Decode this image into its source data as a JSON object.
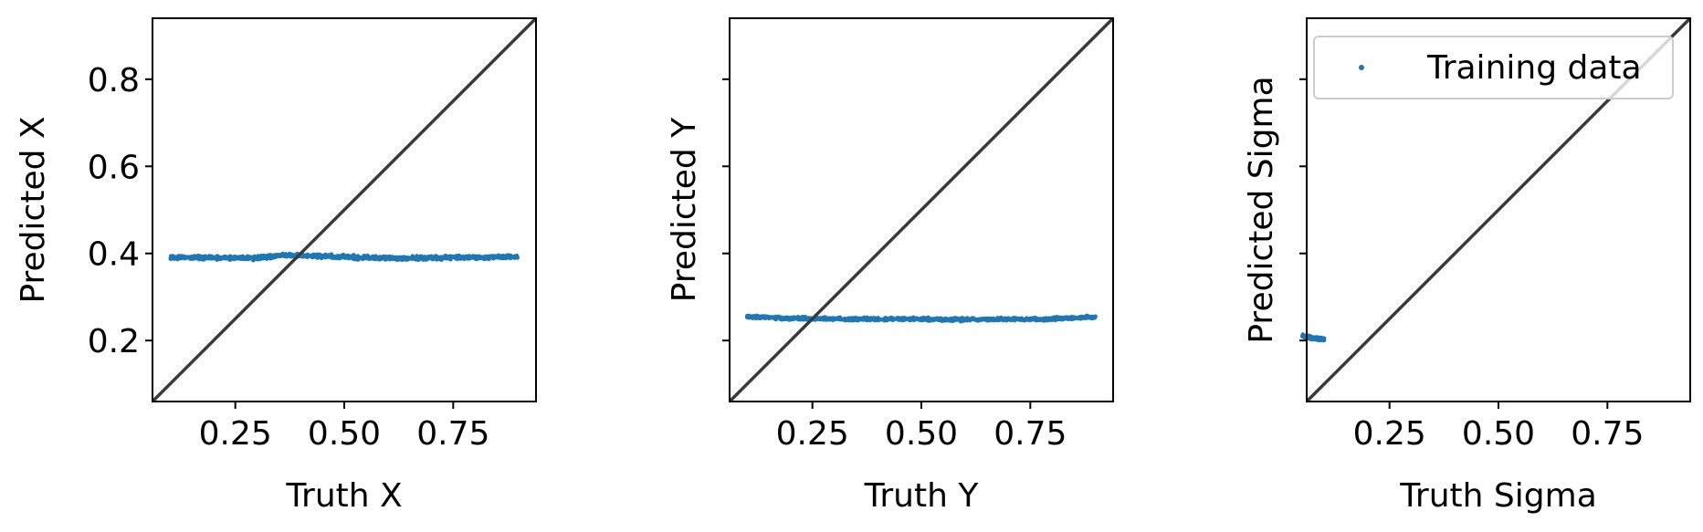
{
  "chart_data": [
    {
      "type": "scatter",
      "title": "",
      "xlabel": "Truth X",
      "ylabel": "Predicted X",
      "xlim": [
        0.06,
        0.94
      ],
      "ylim": [
        0.06,
        0.94
      ],
      "xticks": [
        0.25,
        0.5,
        0.75
      ],
      "xtick_labels": [
        "0.25",
        "0.50",
        "0.75"
      ],
      "yticks": [
        0.2,
        0.4,
        0.6,
        0.8
      ],
      "ytick_labels": [
        "0.2",
        "0.4",
        "0.6",
        "0.8"
      ],
      "identity_line": true,
      "grid": false,
      "series": [
        {
          "color": "#1f77b4",
          "x_range": [
            0.1,
            0.9
          ],
          "y_mean": 0.39,
          "y_spread": 0.006,
          "points": [
            [
              0.1,
              0.391
            ],
            [
              0.2,
              0.39
            ],
            [
              0.3,
              0.389
            ],
            [
              0.36,
              0.396
            ],
            [
              0.5,
              0.392
            ],
            [
              0.6,
              0.389
            ],
            [
              0.7,
              0.39
            ],
            [
              0.8,
              0.391
            ],
            [
              0.9,
              0.392
            ]
          ]
        }
      ]
    },
    {
      "type": "scatter",
      "title": "",
      "xlabel": "Truth Y",
      "ylabel": "Predicted Y",
      "xlim": [
        0.06,
        0.94
      ],
      "ylim": [
        0.06,
        0.94
      ],
      "xticks": [
        0.25,
        0.5,
        0.75
      ],
      "xtick_labels": [
        "0.25",
        "0.50",
        "0.75"
      ],
      "yticks": [
        0.2,
        0.4,
        0.6,
        0.8
      ],
      "ytick_labels": [
        "",
        "",
        "",
        ""
      ],
      "identity_line": true,
      "grid": false,
      "series": [
        {
          "color": "#1f77b4",
          "x_range": [
            0.1,
            0.9
          ],
          "y_mean": 0.25,
          "y_spread": 0.005,
          "points": [
            [
              0.1,
              0.255
            ],
            [
              0.2,
              0.251
            ],
            [
              0.3,
              0.25
            ],
            [
              0.4,
              0.249
            ],
            [
              0.5,
              0.249
            ],
            [
              0.6,
              0.248
            ],
            [
              0.7,
              0.249
            ],
            [
              0.8,
              0.25
            ],
            [
              0.9,
              0.254
            ]
          ]
        }
      ]
    },
    {
      "type": "scatter",
      "title": "",
      "xlabel": "Truth Sigma",
      "ylabel": "Predicted Sigma",
      "xlim": [
        0.06,
        0.94
      ],
      "ylim": [
        0.06,
        0.94
      ],
      "xticks": [
        0.25,
        0.5,
        0.75
      ],
      "xtick_labels": [
        "0.25",
        "0.50",
        "0.75"
      ],
      "yticks": [
        0.2,
        0.4,
        0.6,
        0.8
      ],
      "ytick_labels": [
        "",
        "",
        "",
        ""
      ],
      "identity_line": true,
      "grid": false,
      "legend": {
        "position": "upper-right",
        "entries": [
          "Training data"
        ]
      },
      "series": [
        {
          "name": "Training data",
          "color": "#1f77b4",
          "x_range": [
            0.05,
            0.1
          ],
          "y_mean": 0.205,
          "y_spread": 0.005,
          "points": [
            [
              0.05,
              0.21
            ],
            [
              0.07,
              0.206
            ],
            [
              0.09,
              0.204
            ],
            [
              0.1,
              0.202
            ]
          ]
        }
      ]
    }
  ]
}
